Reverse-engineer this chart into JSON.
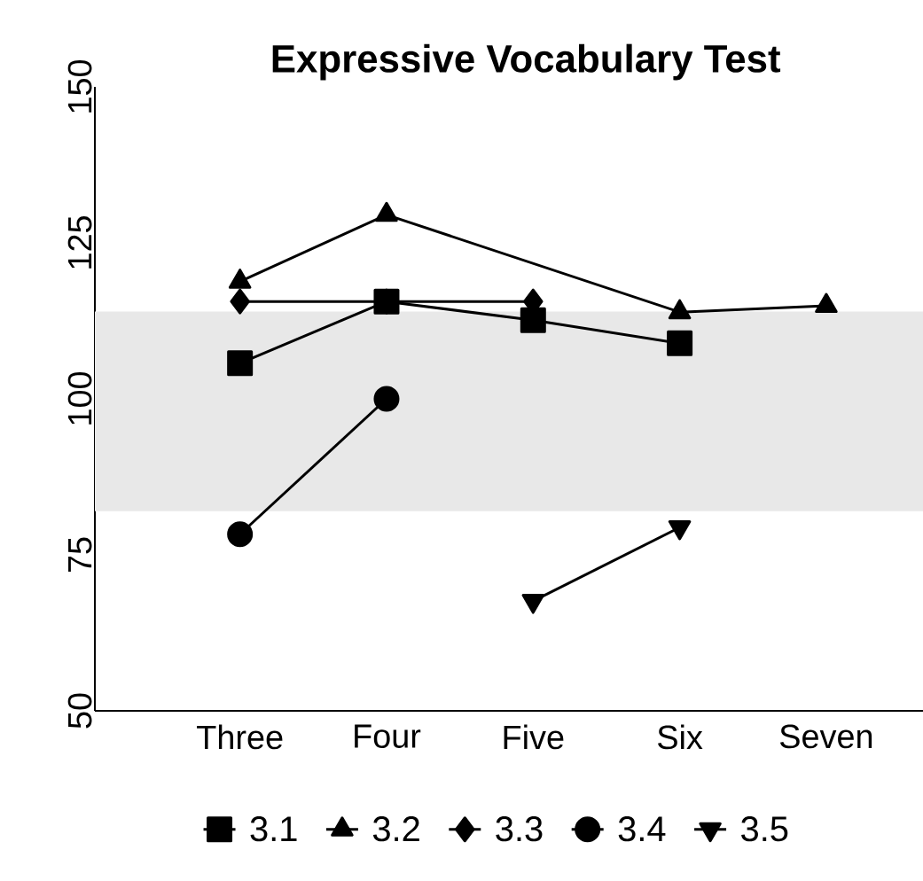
{
  "chart_data": {
    "type": "line",
    "title": "Expressive Vocabulary Test",
    "categories": [
      "Three",
      "Four",
      "Five",
      "Six",
      "Seven"
    ],
    "series": [
      {
        "name": "3.1",
        "color": "#000000",
        "marker": "square",
        "values": [
          105.7,
          115.6,
          112.6,
          108.9,
          null
        ]
      },
      {
        "name": "3.2",
        "color": "#000000",
        "marker": "triangle",
        "values": [
          118.8,
          129.5,
          null,
          113.9,
          114.9
        ]
      },
      {
        "name": "3.3",
        "color": "#000000",
        "marker": "diamond",
        "values": [
          115.6,
          115.6,
          115.6,
          null,
          null
        ]
      },
      {
        "name": "3.4",
        "color": "#000000",
        "marker": "circle",
        "values": [
          78.3,
          100,
          null,
          null,
          null
        ]
      },
      {
        "name": "3.5",
        "color": "#000000",
        "marker": "triangle_down",
        "values": [
          null,
          null,
          67.6,
          79.4,
          null
        ]
      }
    ],
    "ylim": [
      50,
      150
    ],
    "yticks": [
      50,
      75,
      100,
      125,
      150
    ],
    "bands": [
      {
        "axis": "y",
        "from": 82,
        "to": 114,
        "color": "#e8e8e8"
      }
    ],
    "grid": false,
    "legend": "bottom",
    "line_style": "solid"
  }
}
